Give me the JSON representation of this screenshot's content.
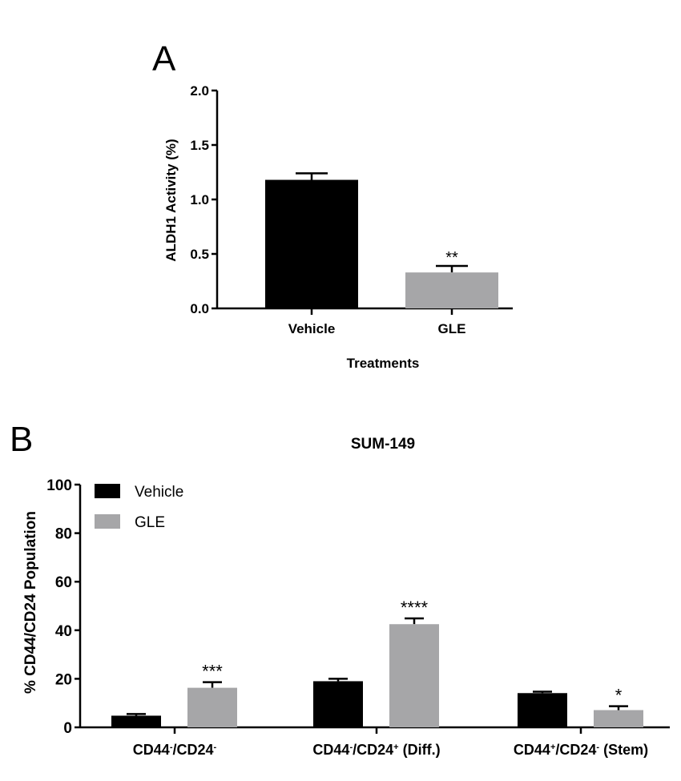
{
  "chart_data": [
    {
      "panel_label": "A",
      "type": "bar",
      "title": "",
      "xlabel": "Treatments",
      "ylabel": "ALDH1 Activity (%)",
      "ylim": [
        0,
        2.0
      ],
      "yticks": [
        "0.0",
        "0.5",
        "1.0",
        "1.5",
        "2.0"
      ],
      "categories": [
        "Vehicle",
        "GLE"
      ],
      "values": [
        1.18,
        0.33
      ],
      "error_upper": [
        1.24,
        0.39
      ],
      "annotations": [
        "",
        "**"
      ],
      "colors": [
        "#000000",
        "#a6a6a8"
      ],
      "grid": false
    },
    {
      "panel_label": "B",
      "type": "bar",
      "title": "SUM-149",
      "xlabel": "",
      "ylabel": "% CD44/CD24 Population",
      "ylim": [
        0,
        100
      ],
      "yticks": [
        "0",
        "20",
        "40",
        "60",
        "80",
        "100"
      ],
      "categories": [
        {
          "a": "CD44",
          "sa": "-",
          "b": "/CD24",
          "sb": "-",
          "c": ""
        },
        {
          "a": "CD44",
          "sa": "-",
          "b": "/CD24",
          "sb": "+",
          "c": " (Diff.)"
        },
        {
          "a": "CD44",
          "sa": "+",
          "b": "/CD24",
          "sb": "-",
          "c": " (Stem)"
        }
      ],
      "series": [
        {
          "name": "Vehicle",
          "color": "#000000",
          "values": [
            4.8,
            19.0,
            14.1
          ],
          "error_upper": [
            5.5,
            20.0,
            14.7
          ],
          "annotations": [
            "",
            "",
            ""
          ]
        },
        {
          "name": "GLE",
          "color": "#a6a6a8",
          "values": [
            16.3,
            42.5,
            7.1
          ],
          "error_upper": [
            18.6,
            44.9,
            8.7
          ],
          "annotations": [
            "***",
            "****",
            "*"
          ]
        }
      ],
      "legend": "top-left",
      "grid": false
    }
  ]
}
